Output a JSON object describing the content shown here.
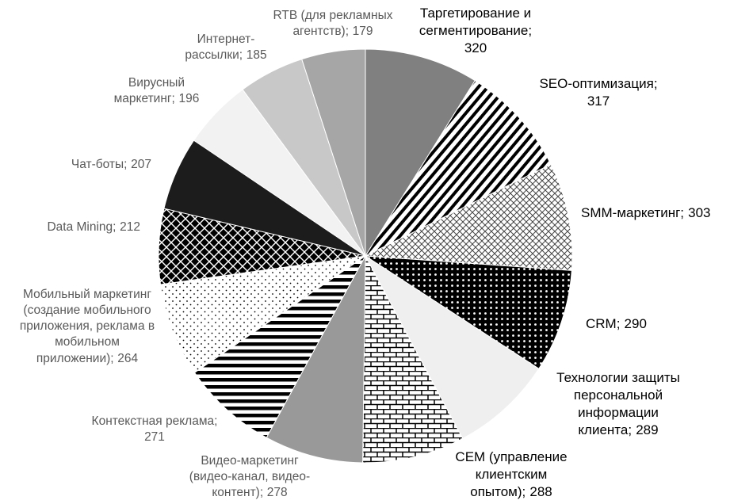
{
  "chart_data": {
    "type": "pie",
    "categories": [
      "Таргетирование и\nсегментирование;",
      "SEO-оптимизация;",
      "SMM-маркетинг;",
      "CRM;",
      "Технологии защиты\nперсональной\nинформации\nклиента;",
      "CEM (управление\nклиентским\nопытом);",
      "Видео-маркетинг\n(видео-канал, видео-\nконтент);",
      "Контекстная реклама;",
      "Мобильный маркетинг\n(создание мобильного\nприложения, реклама в\nмобильном\nприложении);",
      "Data Mining;",
      "Чат-боты;",
      "Вирусный\nмаркетинг;",
      "Интернет-\nрассылки;",
      "RTB (для рекламных\nагентств);"
    ],
    "values": [
      320,
      317,
      303,
      290,
      289,
      288,
      278,
      271,
      264,
      212,
      207,
      196,
      185,
      179
    ],
    "colors": [
      "#808080",
      "url(#p-diag)",
      "url(#p-cross)",
      "url(#p-dots-black)",
      "#efefef",
      "url(#p-brick)",
      "#999999",
      "url(#p-hstripes)",
      "url(#p-dots-white)",
      "url(#p-diamonds)",
      "#1c1c1c",
      "#f2f2f2",
      "#c8c8c8",
      "#a6a6a6"
    ]
  }
}
